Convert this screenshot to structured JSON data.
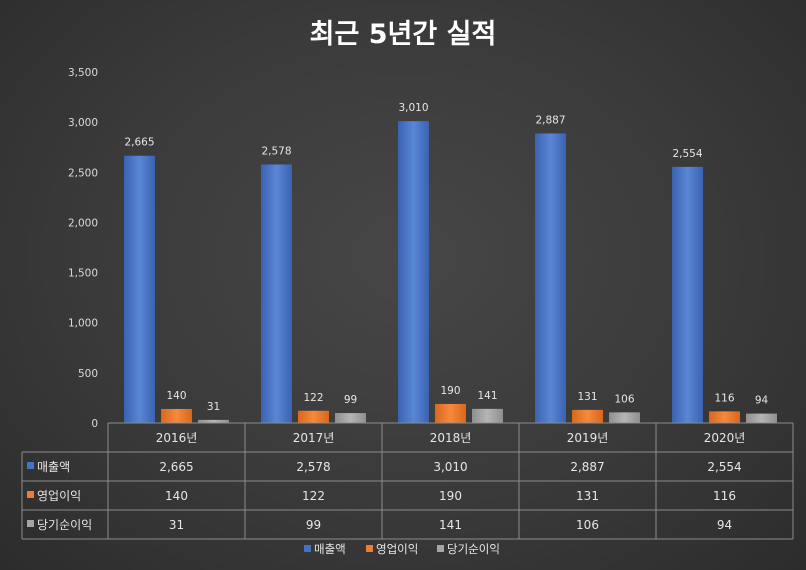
{
  "chart_data": {
    "type": "bar",
    "title": "최근 5년간 실적",
    "categories": [
      "2016년",
      "2017년",
      "2018년",
      "2019년",
      "2020년"
    ],
    "series": [
      {
        "name": "매출액",
        "color": "#4472c4",
        "values": [
          2665,
          2578,
          3010,
          2887,
          2554
        ]
      },
      {
        "name": "영업이익",
        "color": "#ed7d31",
        "values": [
          140,
          122,
          190,
          131,
          116
        ]
      },
      {
        "name": "당기순이익",
        "color": "#a5a5a5",
        "values": [
          31,
          99,
          141,
          106,
          94
        ]
      }
    ],
    "ylim": [
      0,
      3500
    ],
    "yticks": [
      0,
      500,
      1000,
      1500,
      2000,
      2500,
      3000,
      3500
    ],
    "data_table": true,
    "legend": "bottom"
  }
}
